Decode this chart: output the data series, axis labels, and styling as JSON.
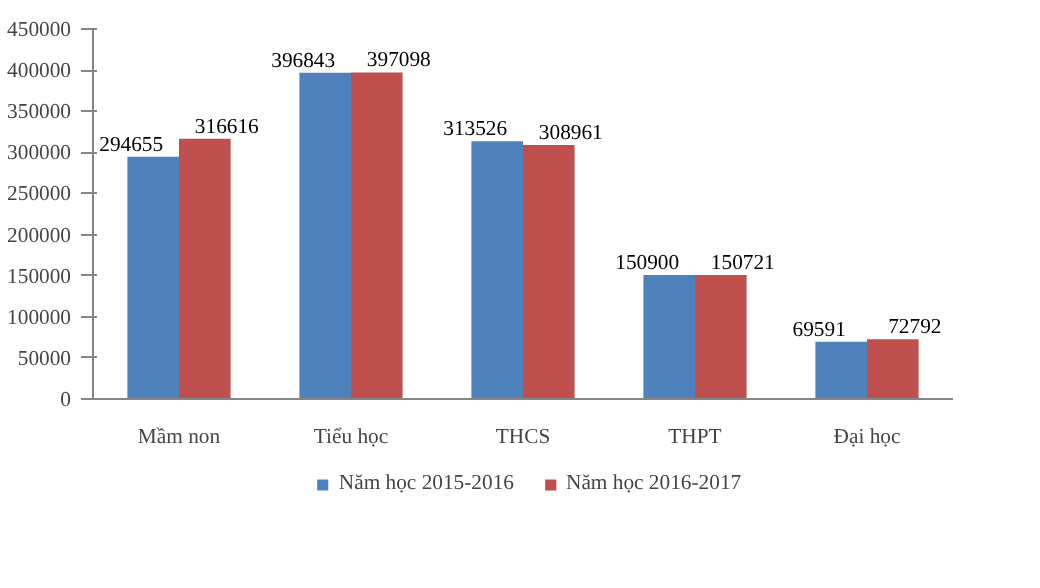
{
  "chart_data": {
    "type": "bar",
    "categories": [
      "Mầm non",
      "Tiểu học",
      "THCS",
      "THPT",
      "Đại học"
    ],
    "series": [
      {
        "name": "Năm học 2015-2016",
        "color": "#4f81bd",
        "values": [
          294655,
          396843,
          313526,
          150900,
          69591
        ]
      },
      {
        "name": "Năm học 2016-2017",
        "color": "#c0504d",
        "values": [
          316616,
          397098,
          308961,
          150721,
          72792
        ]
      }
    ],
    "ylim": [
      0,
      450000
    ],
    "yticks": [
      0,
      50000,
      100000,
      150000,
      200000,
      250000,
      300000,
      350000,
      400000,
      450000
    ],
    "data_labels": true,
    "grid": false,
    "legend": "bottom"
  }
}
